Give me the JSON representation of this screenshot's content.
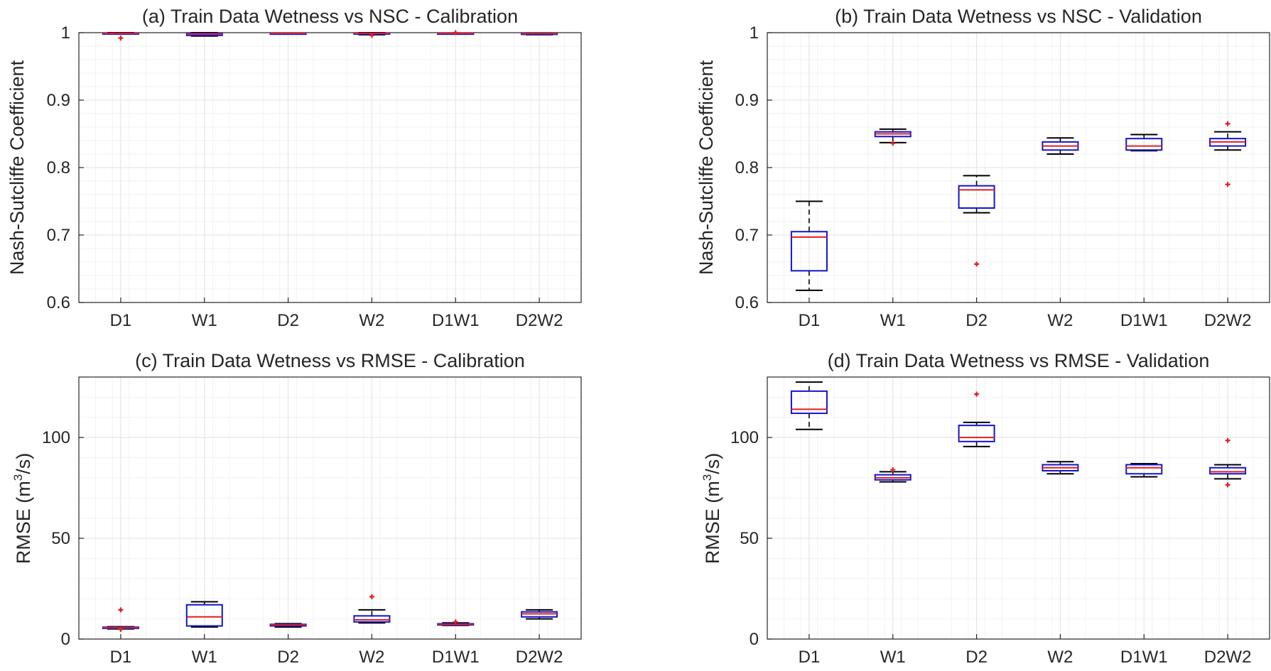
{
  "colors": {
    "box": "#1515c8",
    "median": "#e02020",
    "whisker": "#000000",
    "outlier": "#e02020",
    "grid": "#e6e6e6",
    "axis": "#262626"
  },
  "chart_data": [
    {
      "id": "a",
      "type": "box",
      "title": "(a) Train Data Wetness vs NSC - Calibration",
      "ylabel": "Nash-Sutcliffe Coefficient",
      "ylim": [
        0.6,
        1.0
      ],
      "yticks": [
        0.6,
        0.7,
        0.8,
        0.9,
        1.0
      ],
      "ytick_labels": [
        "0.6",
        "0.7",
        "0.8",
        "0.9",
        "1"
      ],
      "categories": [
        "D1",
        "W1",
        "D2",
        "W2",
        "D1W1",
        "D2W2"
      ],
      "boxes": [
        {
          "whisker_low": 0.998,
          "q1": 0.9985,
          "median": 0.999,
          "q3": 0.9995,
          "whisker_high": 1.0,
          "outliers": [
            0.992
          ]
        },
        {
          "whisker_low": 0.995,
          "q1": 0.996,
          "median": 0.998,
          "q3": 0.999,
          "whisker_high": 1.0,
          "outliers": []
        },
        {
          "whisker_low": 0.9985,
          "q1": 0.9988,
          "median": 0.999,
          "q3": 0.9993,
          "whisker_high": 0.9995,
          "outliers": []
        },
        {
          "whisker_low": 0.997,
          "q1": 0.998,
          "median": 0.999,
          "q3": 0.9995,
          "whisker_high": 1.0,
          "outliers": [
            0.996
          ]
        },
        {
          "whisker_low": 0.9985,
          "q1": 0.9988,
          "median": 0.999,
          "q3": 0.9993,
          "whisker_high": 0.9995,
          "outliers": [
            1.0
          ]
        },
        {
          "whisker_low": 0.997,
          "q1": 0.998,
          "median": 0.9985,
          "q3": 0.999,
          "whisker_high": 0.9995,
          "outliers": []
        }
      ]
    },
    {
      "id": "b",
      "type": "box",
      "title": "(b) Train Data Wetness vs NSC - Validation",
      "ylabel": "Nash-Sutcliffe Coefficient",
      "ylim": [
        0.6,
        1.0
      ],
      "yticks": [
        0.6,
        0.7,
        0.8,
        0.9,
        1.0
      ],
      "ytick_labels": [
        "0.6",
        "0.7",
        "0.8",
        "0.9",
        "1"
      ],
      "categories": [
        "D1",
        "W1",
        "D2",
        "W2",
        "D1W1",
        "D2W2"
      ],
      "boxes": [
        {
          "whisker_low": 0.618,
          "q1": 0.647,
          "median": 0.697,
          "q3": 0.705,
          "whisker_high": 0.75,
          "outliers": []
        },
        {
          "whisker_low": 0.837,
          "q1": 0.846,
          "median": 0.85,
          "q3": 0.853,
          "whisker_high": 0.857,
          "outliers": [
            0.836
          ]
        },
        {
          "whisker_low": 0.733,
          "q1": 0.74,
          "median": 0.767,
          "q3": 0.773,
          "whisker_high": 0.788,
          "outliers": [
            0.657
          ]
        },
        {
          "whisker_low": 0.82,
          "q1": 0.826,
          "median": 0.832,
          "q3": 0.838,
          "whisker_high": 0.844,
          "outliers": []
        },
        {
          "whisker_low": 0.825,
          "q1": 0.826,
          "median": 0.832,
          "q3": 0.843,
          "whisker_high": 0.849,
          "outliers": []
        },
        {
          "whisker_low": 0.826,
          "q1": 0.832,
          "median": 0.838,
          "q3": 0.843,
          "whisker_high": 0.853,
          "outliers": [
            0.865,
            0.775
          ]
        }
      ]
    },
    {
      "id": "c",
      "type": "box",
      "title": "(c) Train Data Wetness vs RMSE - Calibration",
      "ylabel_main": "RMSE (m",
      "ylabel_sup": "3",
      "ylabel_tail": "/s)",
      "ylim": [
        0,
        130
      ],
      "yticks": [
        0,
        50,
        100
      ],
      "ytick_labels": [
        "0",
        "50",
        "100"
      ],
      "categories": [
        "D1",
        "W1",
        "D2",
        "W2",
        "D1W1",
        "D2W2"
      ],
      "boxes": [
        {
          "whisker_low": 5.0,
          "q1": 5.3,
          "median": 5.6,
          "q3": 5.9,
          "whisker_high": 6.1,
          "outliers": [
            14.5,
            4.8
          ]
        },
        {
          "whisker_low": 6.0,
          "q1": 6.5,
          "median": 11.0,
          "q3": 17.0,
          "whisker_high": 18.5,
          "outliers": []
        },
        {
          "whisker_low": 6.0,
          "q1": 6.5,
          "median": 7.0,
          "q3": 7.3,
          "whisker_high": 7.6,
          "outliers": []
        },
        {
          "whisker_low": 8.0,
          "q1": 8.5,
          "median": 9.5,
          "q3": 11.5,
          "whisker_high": 14.5,
          "outliers": [
            21.0
          ]
        },
        {
          "whisker_low": 6.8,
          "q1": 7.0,
          "median": 7.3,
          "q3": 7.6,
          "whisker_high": 8.0,
          "outliers": [
            8.5
          ]
        },
        {
          "whisker_low": 10.0,
          "q1": 11.0,
          "median": 12.5,
          "q3": 13.5,
          "whisker_high": 14.5,
          "outliers": []
        }
      ]
    },
    {
      "id": "d",
      "type": "box",
      "title": "(d) Train Data Wetness vs RMSE - Validation",
      "ylabel_main": "RMSE (m",
      "ylabel_sup": "3",
      "ylabel_tail": "/s)",
      "ylim": [
        0,
        130
      ],
      "yticks": [
        0,
        50,
        100
      ],
      "ytick_labels": [
        "0",
        "50",
        "100"
      ],
      "categories": [
        "D1",
        "W1",
        "D2",
        "W2",
        "D1W1",
        "D2W2"
      ],
      "boxes": [
        {
          "whisker_low": 104.0,
          "q1": 112.0,
          "median": 114.0,
          "q3": 123.0,
          "whisker_high": 127.5,
          "outliers": []
        },
        {
          "whisker_low": 78.0,
          "q1": 79.0,
          "median": 80.0,
          "q3": 81.5,
          "whisker_high": 83.0,
          "outliers": [
            84.0
          ]
        },
        {
          "whisker_low": 95.5,
          "q1": 98.0,
          "median": 100.0,
          "q3": 106.0,
          "whisker_high": 107.5,
          "outliers": [
            121.5
          ]
        },
        {
          "whisker_low": 82.0,
          "q1": 83.5,
          "median": 85.0,
          "q3": 86.5,
          "whisker_high": 88.0,
          "outliers": []
        },
        {
          "whisker_low": 80.5,
          "q1": 82.0,
          "median": 85.0,
          "q3": 86.5,
          "whisker_high": 87.0,
          "outliers": []
        },
        {
          "whisker_low": 79.5,
          "q1": 82.0,
          "median": 83.0,
          "q3": 85.0,
          "whisker_high": 86.5,
          "outliers": [
            98.5,
            76.5
          ]
        }
      ]
    }
  ]
}
